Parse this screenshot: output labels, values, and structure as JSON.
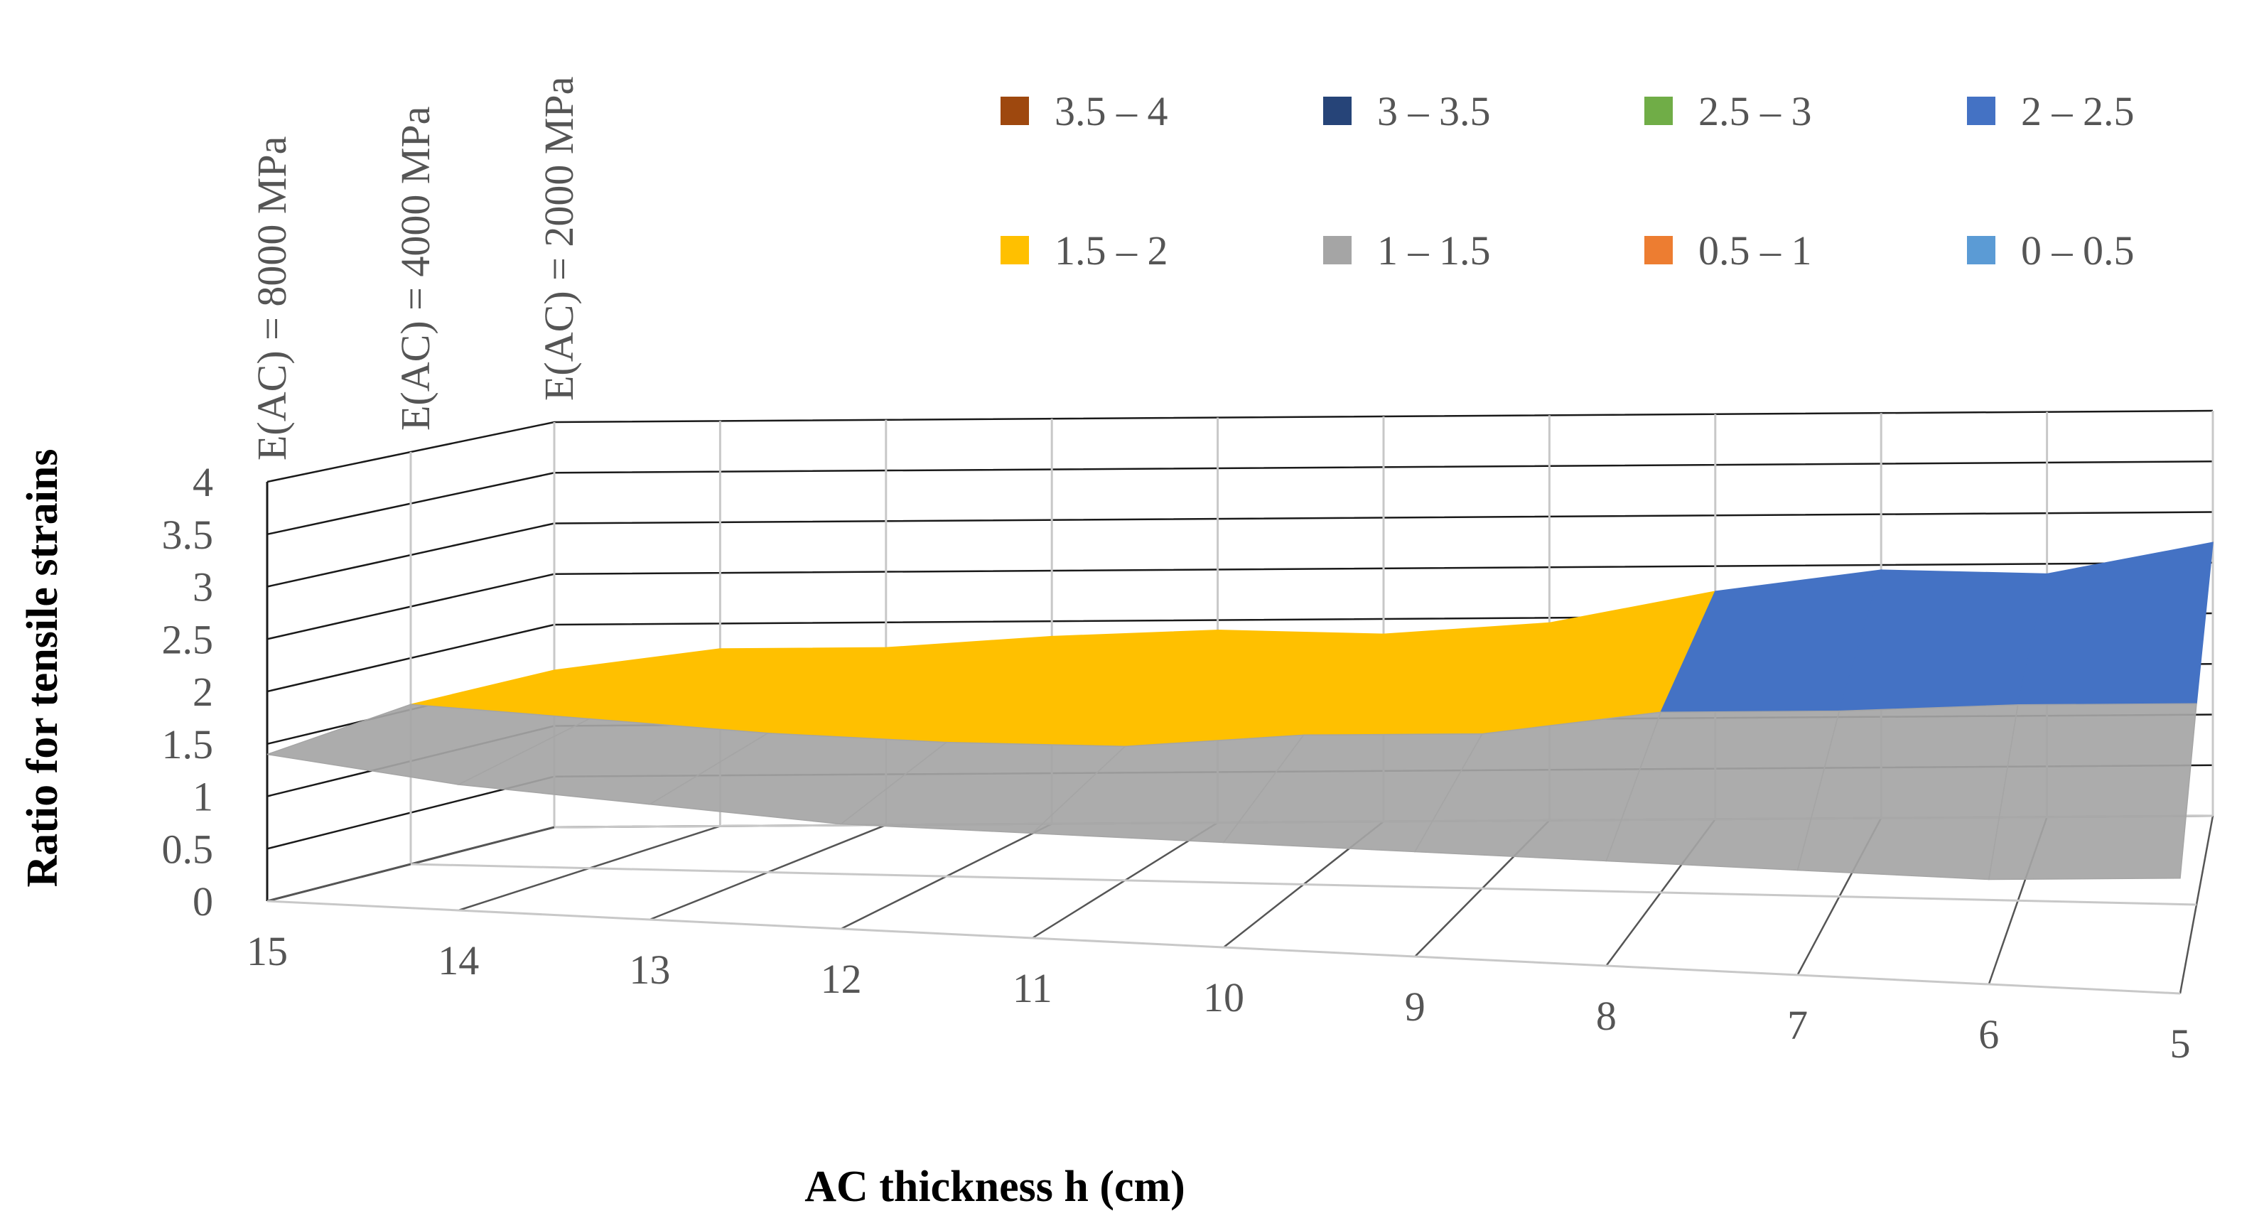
{
  "chart_data": {
    "type": "3d-surface",
    "title": "",
    "xlabel": "AC thickness h (cm)",
    "ylabel": "Ratio for tensile strains",
    "x_categories": [
      "15",
      "14",
      "13",
      "12",
      "11",
      "10",
      "9",
      "8",
      "7",
      "6",
      "5"
    ],
    "depth_series": [
      {
        "name": "E(AC) = 8000 MPa",
        "values": [
          1.4,
          1.2,
          1.1,
          1.0,
          1.0,
          1.0,
          1.0,
          1.0,
          1.0,
          1.0,
          1.1
        ]
      },
      {
        "name": "E(AC) = 4000 MPa",
        "values": [
          1.55,
          1.45,
          1.35,
          1.3,
          1.3,
          1.45,
          1.5,
          1.75,
          1.8,
          1.9,
          1.95
        ]
      },
      {
        "name": "E(AC) = 2000 MPa",
        "values": [
          1.55,
          1.75,
          1.75,
          1.85,
          1.9,
          1.85,
          1.95,
          2.25,
          2.45,
          2.4,
          2.7
        ]
      }
    ],
    "z_ticks": [
      "0",
      "0.5",
      "1",
      "1.5",
      "2",
      "2.5",
      "3",
      "3.5",
      "4"
    ],
    "zlim": [
      0,
      4
    ],
    "grid": true,
    "legend_position": "top-right",
    "legend": [
      {
        "label": "3.5 – 4",
        "color": "#9e480e"
      },
      {
        "label": "3 – 3.5",
        "color": "#264478"
      },
      {
        "label": "2.5 – 3",
        "color": "#70ad47"
      },
      {
        "label": "2 – 2.5",
        "color": "#4472c4"
      },
      {
        "label": "1.5 – 2",
        "color": "#ffc000"
      },
      {
        "label": "1 – 1.5",
        "color": "#a5a5a5"
      },
      {
        "label": "0.5 – 1",
        "color": "#ed7d31"
      },
      {
        "label": "0 – 0.5",
        "color": "#5b9bd5"
      }
    ]
  }
}
